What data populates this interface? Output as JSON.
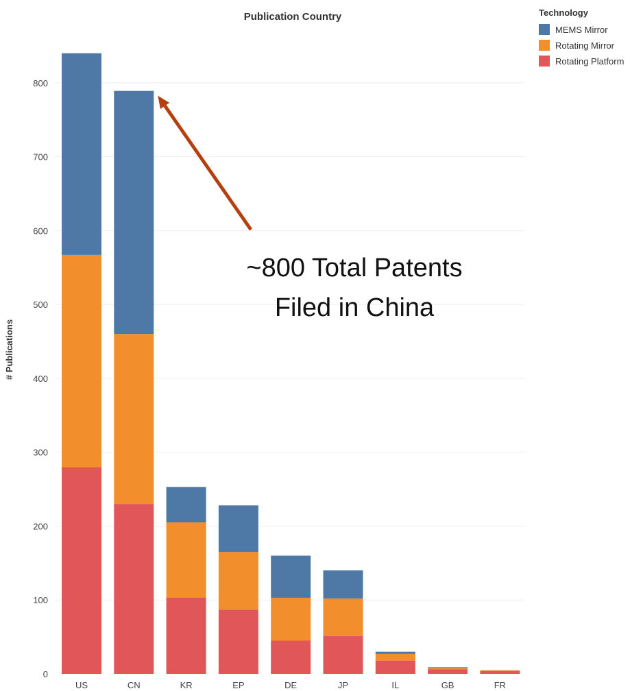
{
  "chart_data": {
    "type": "bar",
    "stacked": true,
    "title": "Publication Country",
    "xlabel": "",
    "ylabel": "# Publications",
    "categories": [
      "US",
      "CN",
      "KR",
      "EP",
      "DE",
      "JP",
      "IL",
      "GB",
      "FR"
    ],
    "series": [
      {
        "name": "Rotating Platform",
        "color": "#e15759",
        "values": [
          280,
          230,
          103,
          87,
          45,
          51,
          18,
          6,
          4
        ]
      },
      {
        "name": "Rotating Mirror",
        "color": "#f28e2b",
        "values": [
          287,
          230,
          102,
          78,
          58,
          51,
          9,
          2,
          1
        ]
      },
      {
        "name": "MEMS Mirror",
        "color": "#4e79a7",
        "values": [
          273,
          329,
          48,
          63,
          57,
          38,
          3,
          1,
          0
        ]
      }
    ],
    "legend": {
      "title": "Technology",
      "position": "top-right",
      "entries": [
        "MEMS Mirror",
        "Rotating Mirror",
        "Rotating Platform"
      ]
    },
    "ylim": [
      0,
      860
    ],
    "yticks": [
      0,
      100,
      200,
      300,
      400,
      500,
      600,
      700,
      800
    ],
    "grid": true,
    "annotation": {
      "lines": [
        "~800 Total Patents",
        "Filed in China"
      ],
      "points_to": "CN",
      "arrow_color": "#b5400f"
    }
  }
}
